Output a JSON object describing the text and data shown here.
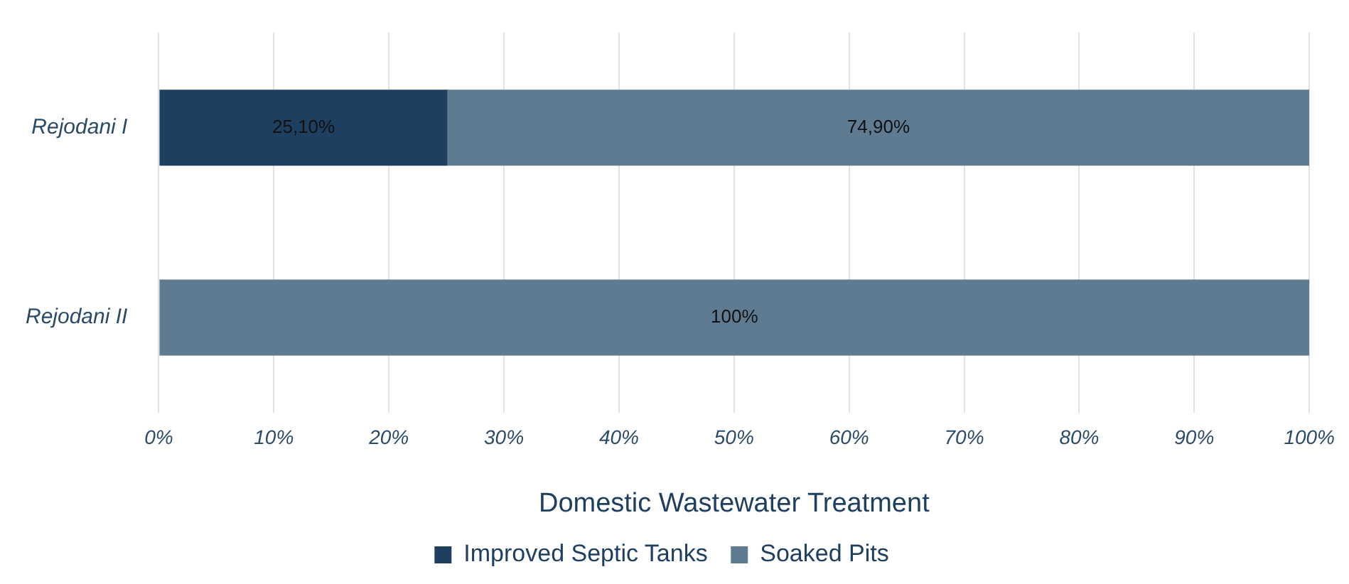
{
  "chart_data": {
    "type": "bar",
    "orientation": "horizontal",
    "stacked": true,
    "categories": [
      "Rejodani I",
      "Rejodani II"
    ],
    "series": [
      {
        "name": "Improved Septic Tanks",
        "color": "#1f3f60",
        "values": [
          25.1,
          0
        ],
        "value_labels": [
          "25,10%",
          null
        ]
      },
      {
        "name": "Soaked Pits",
        "color": "#5f7b92",
        "values": [
          74.9,
          100
        ],
        "value_labels": [
          "74,90%",
          "100%"
        ]
      }
    ],
    "xlabel": "Domestic Wastewater Treatment",
    "xlim": [
      0,
      100
    ],
    "xticks": [
      {
        "value": 0,
        "label": "0%"
      },
      {
        "value": 10,
        "label": "10%"
      },
      {
        "value": 20,
        "label": "20%"
      },
      {
        "value": 30,
        "label": "30%"
      },
      {
        "value": 40,
        "label": "40%"
      },
      {
        "value": 50,
        "label": "50%"
      },
      {
        "value": 60,
        "label": "60%"
      },
      {
        "value": 70,
        "label": "70%"
      },
      {
        "value": 80,
        "label": "80%"
      },
      {
        "value": 90,
        "label": "90%"
      },
      {
        "value": 100,
        "label": "100%"
      }
    ],
    "grid": "x",
    "legend": "bottom"
  }
}
